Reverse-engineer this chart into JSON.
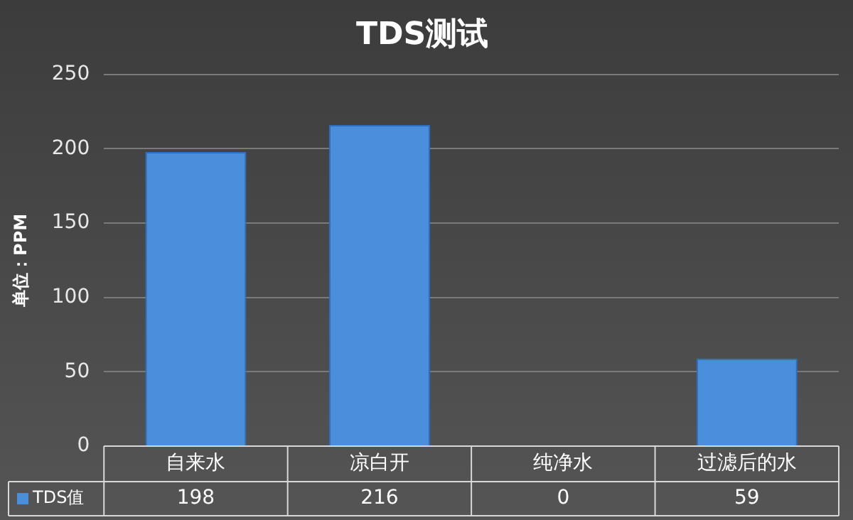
{
  "chart_data": {
    "type": "bar",
    "title": "TDS测试",
    "ylabel": "单位：PPM",
    "categories": [
      "自来水",
      "凉白开",
      "纯净水",
      "过滤后的水"
    ],
    "series": [
      {
        "name": "TDS值",
        "color": "#4a8fdc",
        "values": [
          198,
          216,
          0,
          59
        ]
      }
    ],
    "ylim": [
      0,
      250
    ],
    "yticks": [
      0,
      50,
      100,
      150,
      200,
      250
    ],
    "grid": "y",
    "data_labels": true
  }
}
